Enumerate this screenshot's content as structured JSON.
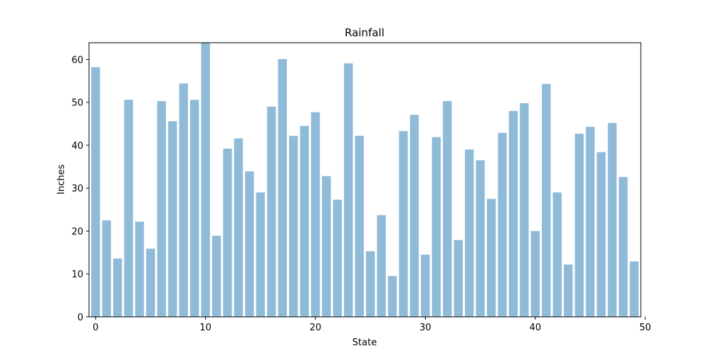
{
  "chart_data": {
    "type": "bar",
    "title": "Rainfall",
    "xlabel": "State",
    "ylabel": "Inches",
    "x": [
      0,
      1,
      2,
      3,
      4,
      5,
      6,
      7,
      8,
      9,
      10,
      11,
      12,
      13,
      14,
      15,
      16,
      17,
      18,
      19,
      20,
      21,
      22,
      23,
      24,
      25,
      26,
      27,
      28,
      29,
      30,
      31,
      32,
      33,
      34,
      35,
      36,
      37,
      38,
      39,
      40,
      41,
      42,
      43,
      44,
      45,
      46,
      47,
      48,
      49
    ],
    "values": [
      58.2,
      22.5,
      13.6,
      50.6,
      22.2,
      15.9,
      50.3,
      45.6,
      54.4,
      50.6,
      63.9,
      18.9,
      39.2,
      41.6,
      33.9,
      29.0,
      49.0,
      60.1,
      42.2,
      44.5,
      47.7,
      32.8,
      27.3,
      59.1,
      42.2,
      15.3,
      23.7,
      9.5,
      43.3,
      47.1,
      14.5,
      41.9,
      50.3,
      17.9,
      39.0,
      36.5,
      27.5,
      42.9,
      48.0,
      49.8,
      20.0,
      54.3,
      29.0,
      12.2,
      42.7,
      44.3,
      38.4,
      45.2,
      32.6,
      12.9
    ],
    "xlim": [
      -0.6,
      49.6
    ],
    "ylim": [
      0,
      63.9
    ],
    "xticks": [
      0,
      10,
      20,
      30,
      40,
      50
    ],
    "yticks": [
      0,
      10,
      20,
      30,
      40,
      50,
      60
    ],
    "grid": false,
    "color": "#1f77b4"
  }
}
